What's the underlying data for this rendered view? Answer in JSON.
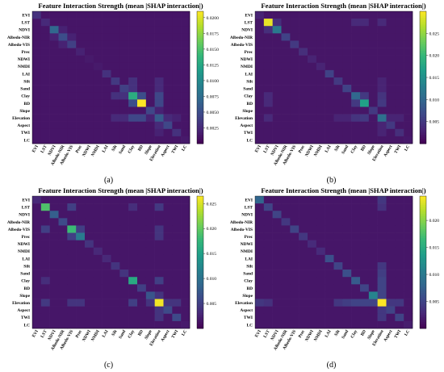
{
  "figure": {
    "panels": [
      {
        "letter": "(a)",
        "title": "Feature Interaction Strength (mean |SHAP interaction|)"
      },
      {
        "letter": "(b)",
        "title": "Feature Interaction Strength (mean |SHAP interaction|)"
      },
      {
        "letter": "(c)",
        "title": "Feature Interaction Strength (mean |SHAP interaction|)"
      },
      {
        "letter": "(d)",
        "title": "Feature Interaction Strength (mean |SHAP interaction|)"
      }
    ]
  },
  "chart_data": [
    {
      "type": "heatmap",
      "title": "Feature Interaction Strength (mean |SHAP interaction|)",
      "panel_label": "(a)",
      "features": [
        "EVI",
        "LST",
        "NDVI",
        "Albedo-NIR",
        "Albedo-VIS",
        "Prec",
        "NDWI",
        "NMDI",
        "LAI",
        "Silt",
        "Sand",
        "Clay",
        "BD",
        "Slope",
        "Elevation",
        "Aspect",
        "TWI",
        "LC"
      ],
      "colormap": "viridis",
      "vmax": 0.021,
      "colorbar_ticks": [
        "0.0025",
        "0.0050",
        "0.0075",
        "0.0100",
        "0.0125",
        "0.0150",
        "0.0175",
        "0.0200"
      ],
      "colorbar_tick_values": [
        0.0025,
        0.005,
        0.0075,
        0.01,
        0.0125,
        0.015,
        0.0175,
        0.02
      ],
      "diagonal": [
        0.003,
        0.0025,
        0.007,
        0.005,
        0.004,
        0.002,
        0.0015,
        0.0015,
        0.003,
        0.0035,
        0.004,
        0.013,
        0.021,
        0.0045,
        0.006,
        0.0045,
        0.003,
        0.0015
      ],
      "off_diagonal": [
        {
          "pair": [
            "BD",
            "Clay"
          ],
          "value": 0.005
        },
        {
          "pair": [
            "Elevation",
            "Clay"
          ],
          "value": 0.0045
        },
        {
          "pair": [
            "Elevation",
            "BD"
          ],
          "value": 0.0045
        },
        {
          "pair": [
            "Silt",
            "Clay"
          ],
          "value": 0.003
        },
        {
          "pair": [
            "Sand",
            "Clay"
          ],
          "value": 0.003
        },
        {
          "pair": [
            "Elevation",
            "Silt"
          ],
          "value": 0.0025
        },
        {
          "pair": [
            "Elevation",
            "Sand"
          ],
          "value": 0.0025
        },
        {
          "pair": [
            "Aspect",
            "Elevation"
          ],
          "value": 0.0025
        },
        {
          "pair": [
            "TWI",
            "Elevation"
          ],
          "value": 0.002
        },
        {
          "pair": [
            "Slope",
            "Elevation"
          ],
          "value": 0.002
        },
        {
          "pair": [
            "NDVI",
            "Albedo-NIR"
          ],
          "value": 0.002
        },
        {
          "pair": [
            "Albedo-VIS",
            "Albedo-NIR"
          ],
          "value": 0.002
        }
      ],
      "background": 0.0012
    },
    {
      "type": "heatmap",
      "title": "Feature Interaction Strength (mean |SHAP interaction|)",
      "panel_label": "(b)",
      "features": [
        "EVI",
        "LST",
        "NDVI",
        "Albedo-NIR",
        "Albedo-VIS",
        "Prec",
        "NDWI",
        "NMDI",
        "LAI",
        "Silt",
        "Sand",
        "Clay",
        "BD",
        "Slope",
        "Elevation",
        "Aspect",
        "TWI",
        "LC"
      ],
      "colormap": "viridis",
      "vmax": 0.03,
      "colorbar_ticks": [
        "0.005",
        "0.010",
        "0.015",
        "0.020",
        "0.025"
      ],
      "colorbar_tick_values": [
        0.005,
        0.01,
        0.015,
        0.02,
        0.025
      ],
      "diagonal": [
        0.003,
        0.029,
        0.012,
        0.006,
        0.005,
        0.004,
        0.003,
        0.003,
        0.006,
        0.005,
        0.006,
        0.01,
        0.017,
        0.005,
        0.011,
        0.005,
        0.004,
        0.002
      ],
      "off_diagonal": [
        {
          "pair": [
            "NDVI",
            "LST"
          ],
          "value": 0.004
        },
        {
          "pair": [
            "Clay",
            "LST"
          ],
          "value": 0.0035
        },
        {
          "pair": [
            "BD",
            "LST"
          ],
          "value": 0.0035
        },
        {
          "pair": [
            "Elevation",
            "LST"
          ],
          "value": 0.0035
        },
        {
          "pair": [
            "BD",
            "Clay"
          ],
          "value": 0.005
        },
        {
          "pair": [
            "Elevation",
            "Clay"
          ],
          "value": 0.0045
        },
        {
          "pair": [
            "Elevation",
            "BD"
          ],
          "value": 0.005
        },
        {
          "pair": [
            "Elevation",
            "Sand"
          ],
          "value": 0.003
        },
        {
          "pair": [
            "Elevation",
            "Silt"
          ],
          "value": 0.003
        },
        {
          "pair": [
            "TWI",
            "Elevation"
          ],
          "value": 0.003
        },
        {
          "pair": [
            "Aspect",
            "Elevation"
          ],
          "value": 0.003
        }
      ],
      "background": 0.0018
    },
    {
      "type": "heatmap",
      "title": "Feature Interaction Strength (mean |SHAP interaction|)",
      "panel_label": "(c)",
      "features": [
        "EVI",
        "LST",
        "NDVI",
        "Albedo-NIR",
        "Albedo-VIS",
        "Prec",
        "NDWI",
        "NMDI",
        "LAI",
        "Silt",
        "Sand",
        "Clay",
        "BD",
        "Slope",
        "Elevation",
        "Aspect",
        "TWI",
        "LC"
      ],
      "colormap": "viridis",
      "vmax": 0.0265,
      "colorbar_ticks": [
        "0.005",
        "0.010",
        "0.015",
        "0.020",
        "0.025"
      ],
      "colorbar_tick_values": [
        0.005,
        0.01,
        0.015,
        0.02,
        0.025
      ],
      "diagonal": [
        0.003,
        0.019,
        0.008,
        0.006,
        0.018,
        0.011,
        0.004,
        0.003,
        0.003,
        0.004,
        0.004,
        0.016,
        0.005,
        0.007,
        0.026,
        0.006,
        0.006,
        0.002
      ],
      "off_diagonal": [
        {
          "pair": [
            "Albedo-VIS",
            "LST"
          ],
          "value": 0.005
        },
        {
          "pair": [
            "Prec",
            "Albedo-VIS"
          ],
          "value": 0.005
        },
        {
          "pair": [
            "Elevation",
            "Albedo-VIS"
          ],
          "value": 0.004
        },
        {
          "pair": [
            "Elevation",
            "LST"
          ],
          "value": 0.0045
        },
        {
          "pair": [
            "Elevation",
            "Clay"
          ],
          "value": 0.005
        },
        {
          "pair": [
            "Elevation",
            "Prec"
          ],
          "value": 0.004
        },
        {
          "pair": [
            "Aspect",
            "Elevation"
          ],
          "value": 0.004
        },
        {
          "pair": [
            "TWI",
            "Elevation"
          ],
          "value": 0.004
        },
        {
          "pair": [
            "Slope",
            "Elevation"
          ],
          "value": 0.004
        },
        {
          "pair": [
            "Clay",
            "LST"
          ],
          "value": 0.0035
        }
      ],
      "background": 0.0016
    },
    {
      "type": "heatmap",
      "title": "Feature Interaction Strength (mean |SHAP interaction|)",
      "panel_label": "(d)",
      "features": [
        "EVI",
        "LST",
        "NDVI",
        "Albedo-NIR",
        "Albedo-VIS",
        "Prec",
        "NDWI",
        "NMDI",
        "LAI",
        "Silt",
        "Sand",
        "Clay",
        "BD",
        "Slope",
        "Elevation",
        "Aspect",
        "TWI",
        "LC"
      ],
      "colormap": "viridis",
      "vmax": 0.0245,
      "colorbar_ticks": [
        "0.005",
        "0.010",
        "0.015",
        "0.020"
      ],
      "colorbar_tick_values": [
        0.005,
        0.01,
        0.015,
        0.02
      ],
      "diagonal": [
        0.008,
        0.005,
        0.005,
        0.004,
        0.005,
        0.004,
        0.003,
        0.003,
        0.006,
        0.005,
        0.006,
        0.007,
        0.005,
        0.011,
        0.0245,
        0.005,
        0.005,
        0.002
      ],
      "off_diagonal": [
        {
          "pair": [
            "Elevation",
            "EVI"
          ],
          "value": 0.004
        },
        {
          "pair": [
            "Elevation",
            "LST"
          ],
          "value": 0.0035
        },
        {
          "pair": [
            "Elevation",
            "Clay"
          ],
          "value": 0.005
        },
        {
          "pair": [
            "Elevation",
            "BD"
          ],
          "value": 0.005
        },
        {
          "pair": [
            "Elevation",
            "Sand"
          ],
          "value": 0.0045
        },
        {
          "pair": [
            "Elevation",
            "Silt"
          ],
          "value": 0.004
        },
        {
          "pair": [
            "Elevation",
            "Slope"
          ],
          "value": 0.005
        },
        {
          "pair": [
            "Aspect",
            "Elevation"
          ],
          "value": 0.004
        },
        {
          "pair": [
            "TWI",
            "Elevation"
          ],
          "value": 0.004
        }
      ],
      "background": 0.0015
    }
  ]
}
